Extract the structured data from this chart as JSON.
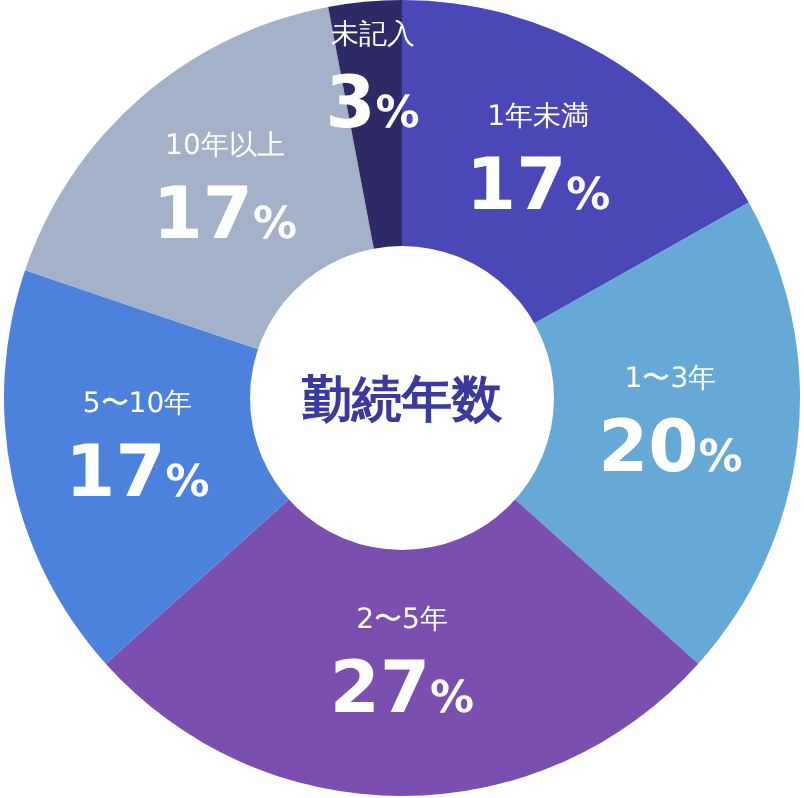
{
  "chart_data": {
    "type": "donut",
    "title": "勤続年数",
    "categories": [
      "1年未満",
      "1〜3年",
      "2〜5年",
      "5〜10年",
      "10年以上",
      "未記入"
    ],
    "values": [
      17,
      20,
      27,
      17,
      17,
      3
    ],
    "value_labels": [
      "17%",
      "20%",
      "27%",
      "17%",
      "17%",
      "3%"
    ],
    "colors": [
      "#4a47b6",
      "#66a8d6",
      "#7b4fb0",
      "#4c82dc",
      "#a3b1c9",
      "#2d2a66"
    ]
  }
}
